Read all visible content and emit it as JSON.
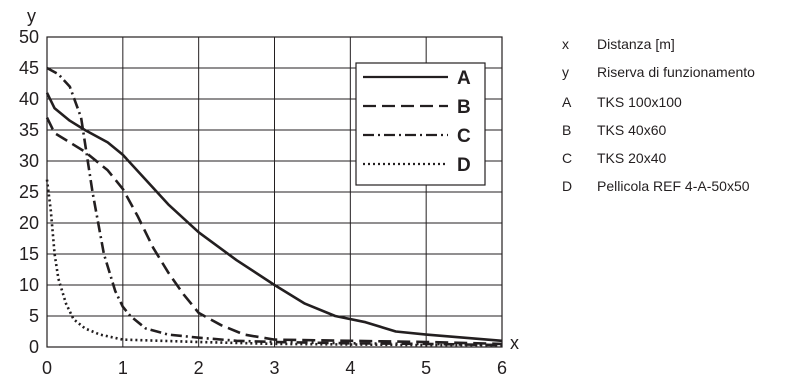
{
  "chart_data": {
    "type": "line",
    "title": "",
    "xlabel": "x",
    "ylabel": "y",
    "xlim": [
      0,
      6
    ],
    "ylim": [
      0,
      50
    ],
    "x_ticks": [
      "0",
      "1",
      "2",
      "3",
      "4",
      "5",
      "6"
    ],
    "y_ticks": [
      "0",
      "5",
      "10",
      "15",
      "20",
      "25",
      "30",
      "35",
      "40",
      "45",
      "50"
    ],
    "grid": true,
    "legend_position": "top-right",
    "series": [
      {
        "name": "A",
        "style": "solid",
        "points": [
          [
            0,
            41
          ],
          [
            0.1,
            38.5
          ],
          [
            0.3,
            36.5
          ],
          [
            0.5,
            35
          ],
          [
            0.8,
            33
          ],
          [
            1,
            31
          ],
          [
            1.3,
            27
          ],
          [
            1.6,
            23
          ],
          [
            2,
            18.5
          ],
          [
            2.5,
            14
          ],
          [
            3,
            10
          ],
          [
            3.4,
            7
          ],
          [
            3.8,
            5
          ],
          [
            4.2,
            4
          ],
          [
            4.6,
            2.5
          ],
          [
            5,
            2
          ],
          [
            5.5,
            1.5
          ],
          [
            6,
            1
          ]
        ]
      },
      {
        "name": "B",
        "style": "dashed",
        "points": [
          [
            0,
            37
          ],
          [
            0.1,
            34.5
          ],
          [
            0.3,
            33
          ],
          [
            0.5,
            31.5
          ],
          [
            0.8,
            28.5
          ],
          [
            1,
            25.5
          ],
          [
            1.2,
            21
          ],
          [
            1.4,
            16
          ],
          [
            1.6,
            12
          ],
          [
            1.8,
            8.5
          ],
          [
            2,
            5.5
          ],
          [
            2.3,
            3.5
          ],
          [
            2.6,
            2
          ],
          [
            3,
            1.2
          ],
          [
            4,
            1
          ],
          [
            5,
            0.8
          ],
          [
            6,
            0.5
          ]
        ]
      },
      {
        "name": "C",
        "style": "dashdot",
        "points": [
          [
            0,
            45
          ],
          [
            0.15,
            44
          ],
          [
            0.3,
            42
          ],
          [
            0.45,
            37
          ],
          [
            0.6,
            25
          ],
          [
            0.75,
            15
          ],
          [
            0.9,
            9
          ],
          [
            1,
            6.5
          ],
          [
            1.1,
            5
          ],
          [
            1.3,
            3
          ],
          [
            1.6,
            2
          ],
          [
            2,
            1.5
          ],
          [
            2.5,
            1
          ],
          [
            3,
            0.8
          ],
          [
            4,
            0.6
          ],
          [
            5,
            0.5
          ],
          [
            6,
            0.3
          ]
        ]
      },
      {
        "name": "D",
        "style": "dotted",
        "points": [
          [
            0,
            27
          ],
          [
            0.05,
            22
          ],
          [
            0.1,
            15
          ],
          [
            0.15,
            11
          ],
          [
            0.25,
            7
          ],
          [
            0.35,
            4.5
          ],
          [
            0.5,
            3
          ],
          [
            0.7,
            2
          ],
          [
            1,
            1.2
          ],
          [
            1.5,
            1
          ],
          [
            2,
            0.8
          ],
          [
            3,
            0.5
          ],
          [
            4,
            0.4
          ],
          [
            5,
            0.3
          ],
          [
            6,
            0.3
          ]
        ]
      }
    ]
  },
  "side_legend": [
    {
      "key": "x",
      "text": "Distanza [m]"
    },
    {
      "key": "y",
      "text": "Riserva di funzionamento"
    },
    {
      "key": "A",
      "text": "TKS 100x100"
    },
    {
      "key": "B",
      "text": "TKS 40x60"
    },
    {
      "key": "C",
      "text": "TKS 20x40"
    },
    {
      "key": "D",
      "text": "Pellicola REF 4-A-50x50"
    }
  ]
}
